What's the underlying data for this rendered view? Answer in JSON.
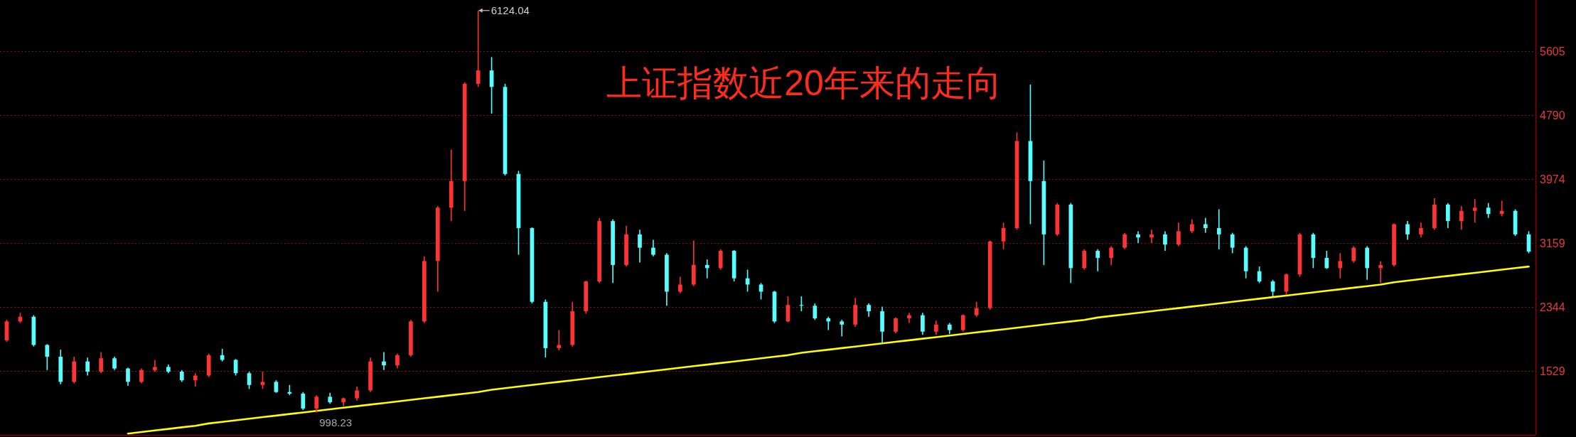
{
  "chart_data": {
    "type": "candlestick",
    "title": "上证指数近20年来的走向",
    "categories": [
      null,
      null,
      null,
      null,
      null,
      null,
      null,
      null,
      null,
      null,
      null,
      null,
      null,
      null,
      null,
      null,
      null,
      null,
      null,
      null,
      null,
      null,
      null,
      null,
      null,
      null,
      null,
      null,
      null,
      null,
      null,
      null,
      null,
      null,
      null,
      null,
      null,
      null,
      null,
      null,
      null,
      null,
      null,
      null,
      null,
      null,
      null,
      null,
      null,
      null,
      null,
      null,
      null,
      null,
      null,
      null,
      null,
      null,
      null,
      null,
      null,
      null,
      null,
      null,
      null,
      null,
      null,
      null,
      null,
      null,
      null,
      null,
      null,
      null,
      null,
      null,
      null,
      null,
      null,
      null,
      null,
      null,
      null,
      null,
      null,
      null,
      null,
      null,
      null,
      null,
      null,
      null,
      null,
      null,
      null,
      null,
      null,
      null,
      null,
      null,
      null,
      null,
      null,
      null,
      null,
      null,
      null,
      null,
      null,
      null,
      null,
      null,
      null,
      null
    ],
    "ohlc": [
      [
        1920,
        2180,
        1900,
        2160
      ],
      [
        2160,
        2270,
        2140,
        2220
      ],
      [
        2220,
        2240,
        1840,
        1860
      ],
      [
        1860,
        1870,
        1540,
        1710
      ],
      [
        1710,
        1800,
        1360,
        1390
      ],
      [
        1390,
        1710,
        1370,
        1650
      ],
      [
        1650,
        1700,
        1470,
        1520
      ],
      [
        1520,
        1770,
        1500,
        1690
      ],
      [
        1690,
        1710,
        1540,
        1560
      ],
      [
        1560,
        1570,
        1340,
        1390
      ],
      [
        1390,
        1560,
        1370,
        1540
      ],
      [
        1540,
        1670,
        1520,
        1580
      ],
      [
        1580,
        1610,
        1500,
        1520
      ],
      [
        1520,
        1540,
        1390,
        1410
      ],
      [
        1410,
        1500,
        1330,
        1470
      ],
      [
        1470,
        1750,
        1450,
        1730
      ],
      [
        1730,
        1810,
        1650,
        1670
      ],
      [
        1670,
        1680,
        1470,
        1500
      ],
      [
        1500,
        1520,
        1300,
        1350
      ],
      [
        1350,
        1520,
        1300,
        1390
      ],
      [
        1390,
        1410,
        1250,
        1260
      ],
      [
        1260,
        1350,
        1220,
        1240
      ],
      [
        1240,
        1260,
        1030,
        1050
      ],
      [
        1050,
        1220,
        998.23,
        1200
      ],
      [
        1200,
        1250,
        1110,
        1130
      ],
      [
        1130,
        1190,
        1080,
        1180
      ],
      [
        1180,
        1330,
        1150,
        1280
      ],
      [
        1280,
        1700,
        1260,
        1650
      ],
      [
        1650,
        1770,
        1540,
        1600
      ],
      [
        1600,
        1750,
        1560,
        1730
      ],
      [
        1730,
        2180,
        1710,
        2160
      ],
      [
        2160,
        2990,
        2140,
        2930
      ],
      [
        2930,
        3630,
        2540,
        3610
      ],
      [
        3610,
        4350,
        3440,
        3950
      ],
      [
        3950,
        5210,
        3570,
        5190
      ],
      [
        5190,
        6124.04,
        5150,
        5360
      ],
      [
        5360,
        5530,
        4810,
        5150
      ],
      [
        5150,
        5190,
        4020,
        4040
      ],
      [
        4040,
        4080,
        3010,
        3350
      ],
      [
        3350,
        3360,
        2390,
        2410
      ],
      [
        2410,
        2440,
        1700,
        1820
      ],
      [
        1820,
        2050,
        1790,
        1860
      ],
      [
        1860,
        2410,
        1840,
        2290
      ],
      [
        2290,
        2680,
        2260,
        2670
      ],
      [
        2670,
        3480,
        2650,
        3440
      ],
      [
        3440,
        3460,
        2650,
        2880
      ],
      [
        2880,
        3380,
        2860,
        3270
      ],
      [
        3270,
        3330,
        2910,
        3100
      ],
      [
        3100,
        3200,
        2990,
        3010
      ],
      [
        3010,
        3030,
        2360,
        2540
      ],
      [
        2540,
        2730,
        2520,
        2630
      ],
      [
        2630,
        3190,
        2610,
        2880
      ],
      [
        2880,
        2950,
        2710,
        2840
      ],
      [
        2840,
        3080,
        2820,
        3060
      ],
      [
        3060,
        3070,
        2670,
        2710
      ],
      [
        2710,
        2820,
        2540,
        2630
      ],
      [
        2630,
        2650,
        2440,
        2540
      ],
      [
        2540,
        2550,
        2140,
        2160
      ],
      [
        2160,
        2480,
        2150,
        2370
      ],
      [
        2370,
        2480,
        2290,
        2360
      ],
      [
        2360,
        2390,
        2180,
        2200
      ],
      [
        2200,
        2220,
        2050,
        2160
      ],
      [
        2160,
        2180,
        1970,
        2120
      ],
      [
        2120,
        2460,
        2090,
        2370
      ],
      [
        2370,
        2390,
        2220,
        2290
      ],
      [
        2290,
        2350,
        1880,
        2030
      ],
      [
        2030,
        2210,
        2010,
        2200
      ],
      [
        2200,
        2270,
        2140,
        2240
      ],
      [
        2240,
        2270,
        1990,
        2030
      ],
      [
        2030,
        2170,
        1990,
        2120
      ],
      [
        2120,
        2140,
        2000,
        2050
      ],
      [
        2050,
        2250,
        2030,
        2240
      ],
      [
        2240,
        2410,
        2220,
        2330
      ],
      [
        2330,
        3190,
        2310,
        3180
      ],
      [
        3180,
        3420,
        3080,
        3350
      ],
      [
        3350,
        4570,
        3330,
        4460
      ],
      [
        4460,
        5180,
        3400,
        3950
      ],
      [
        3950,
        4210,
        2880,
        3270
      ],
      [
        3270,
        3670,
        3250,
        3650
      ],
      [
        3650,
        3670,
        2650,
        2840
      ],
      [
        2840,
        3080,
        2820,
        3060
      ],
      [
        3060,
        3080,
        2800,
        2970
      ],
      [
        2970,
        3120,
        2880,
        3100
      ],
      [
        3100,
        3290,
        3080,
        3270
      ],
      [
        3270,
        3310,
        3160,
        3230
      ],
      [
        3230,
        3330,
        3160,
        3270
      ],
      [
        3270,
        3310,
        3060,
        3140
      ],
      [
        3140,
        3420,
        3120,
        3310
      ],
      [
        3310,
        3460,
        3290,
        3400
      ],
      [
        3400,
        3480,
        3290,
        3350
      ],
      [
        3350,
        3590,
        3080,
        3270
      ],
      [
        3270,
        3290,
        3030,
        3100
      ],
      [
        3100,
        3120,
        2710,
        2800
      ],
      [
        2800,
        2860,
        2650,
        2670
      ],
      [
        2670,
        2690,
        2480,
        2540
      ],
      [
        2540,
        2770,
        2500,
        2760
      ],
      [
        2760,
        3290,
        2730,
        3270
      ],
      [
        3270,
        3290,
        2840,
        2970
      ],
      [
        2970,
        3060,
        2830,
        2840
      ],
      [
        2840,
        3030,
        2710,
        2930
      ],
      [
        2930,
        3120,
        2910,
        3100
      ],
      [
        3100,
        3120,
        2690,
        2840
      ],
      [
        2840,
        2930,
        2650,
        2880
      ],
      [
        2880,
        3410,
        2860,
        3400
      ],
      [
        3400,
        3440,
        3200,
        3270
      ],
      [
        3270,
        3420,
        3230,
        3350
      ],
      [
        3350,
        3730,
        3330,
        3650
      ],
      [
        3650,
        3670,
        3350,
        3440
      ],
      [
        3440,
        3630,
        3330,
        3570
      ],
      [
        3570,
        3720,
        3420,
        3610
      ],
      [
        3610,
        3670,
        3480,
        3530
      ],
      [
        3530,
        3700,
        3500,
        3570
      ],
      [
        3570,
        3590,
        3250,
        3270
      ],
      [
        3270,
        3310,
        3030,
        3050
      ]
    ],
    "colors": [
      "#ff3333",
      "#ff3333",
      "#55ffff",
      "#55ffff",
      "#55ffff",
      "#ff3333",
      "#55ffff",
      "#ff3333",
      "#55ffff",
      "#55ffff",
      "#ff3333",
      "#ff3333",
      "#55ffff",
      "#55ffff",
      "#ff3333",
      "#ff3333",
      "#55ffff",
      "#55ffff",
      "#55ffff",
      "#ff3333",
      "#55ffff",
      "#55ffff",
      "#55ffff",
      "#ff3333",
      "#55ffff",
      "#ff3333",
      "#ff3333",
      "#ff3333",
      "#55ffff",
      "#ff3333",
      "#ff3333",
      "#ff3333",
      "#ff3333",
      "#ff3333",
      "#ff3333",
      "#ff3333",
      "#55ffff",
      "#55ffff",
      "#55ffff",
      "#55ffff",
      "#55ffff",
      "#ff3333",
      "#ff3333",
      "#ff3333",
      "#ff3333",
      "#55ffff",
      "#ff3333",
      "#55ffff",
      "#55ffff",
      "#55ffff",
      "#ff3333",
      "#ff3333",
      "#55ffff",
      "#ff3333",
      "#55ffff",
      "#55ffff",
      "#55ffff",
      "#55ffff",
      "#ff3333",
      "#55ffff",
      "#55ffff",
      "#55ffff",
      "#55ffff",
      "#ff3333",
      "#55ffff",
      "#55ffff",
      "#ff3333",
      "#ff3333",
      "#55ffff",
      "#ff3333",
      "#55ffff",
      "#ff3333",
      "#ff3333",
      "#ff3333",
      "#ff3333",
      "#ff3333",
      "#55ffff",
      "#55ffff",
      "#ff3333",
      "#55ffff",
      "#ff3333",
      "#55ffff",
      "#ff3333",
      "#ff3333",
      "#55ffff",
      "#ff3333",
      "#55ffff",
      "#ff3333",
      "#ff3333",
      "#55ffff",
      "#55ffff",
      "#55ffff",
      "#55ffff",
      "#55ffff",
      "#55ffff",
      "#ff3333",
      "#ff3333",
      "#55ffff",
      "#55ffff",
      "#ff3333",
      "#ff3333",
      "#55ffff",
      "#ff3333",
      "#ff3333",
      "#55ffff",
      "#ff3333",
      "#ff3333",
      "#55ffff",
      "#ff3333",
      "#ff3333",
      "#55ffff",
      "#ff3333",
      "#55ffff",
      "#55ffff"
    ],
    "series": [
      {
        "type": "line",
        "color": "#ffff00",
        "values": [
          null,
          null,
          null,
          null,
          null,
          null,
          null,
          null,
          null,
          730,
          750,
          770,
          790,
          810,
          830,
          860,
          880,
          900,
          920,
          940,
          960,
          980,
          1000,
          1020,
          1040,
          1060,
          1080,
          1100,
          1120,
          1140,
          1160,
          1180,
          1200,
          1220,
          1240,
          1260,
          1290,
          1310,
          1330,
          1350,
          1370,
          1390,
          1410,
          1430,
          1450,
          1470,
          1490,
          1510,
          1530,
          1550,
          1570,
          1590,
          1610,
          1630,
          1650,
          1670,
          1690,
          1710,
          1730,
          1760,
          1780,
          1800,
          1820,
          1840,
          1860,
          1880,
          1900,
          1920,
          1940,
          1960,
          1980,
          2000,
          2020,
          2040,
          2060,
          2080,
          2100,
          2120,
          2140,
          2160,
          2180,
          2210,
          2230,
          2250,
          2270,
          2290,
          2310,
          2330,
          2350,
          2370,
          2390,
          2410,
          2430,
          2450,
          2470,
          2490,
          2510,
          2530,
          2550,
          2570,
          2590,
          2610,
          2630,
          2660,
          2680,
          2700,
          2720,
          2740,
          2760,
          2780,
          2800,
          2820,
          2840,
          2860
        ]
      }
    ],
    "annotations": [
      "6124.04",
      {
        "text": "998.23",
        "y": 998.23
      }
    ],
    "ylim": [
      714,
      6258
    ],
    "yticks": [
      1529,
      2344,
      3159,
      3974,
      4790,
      5605
    ],
    "grid": "y",
    "tick_labels": "y"
  }
}
